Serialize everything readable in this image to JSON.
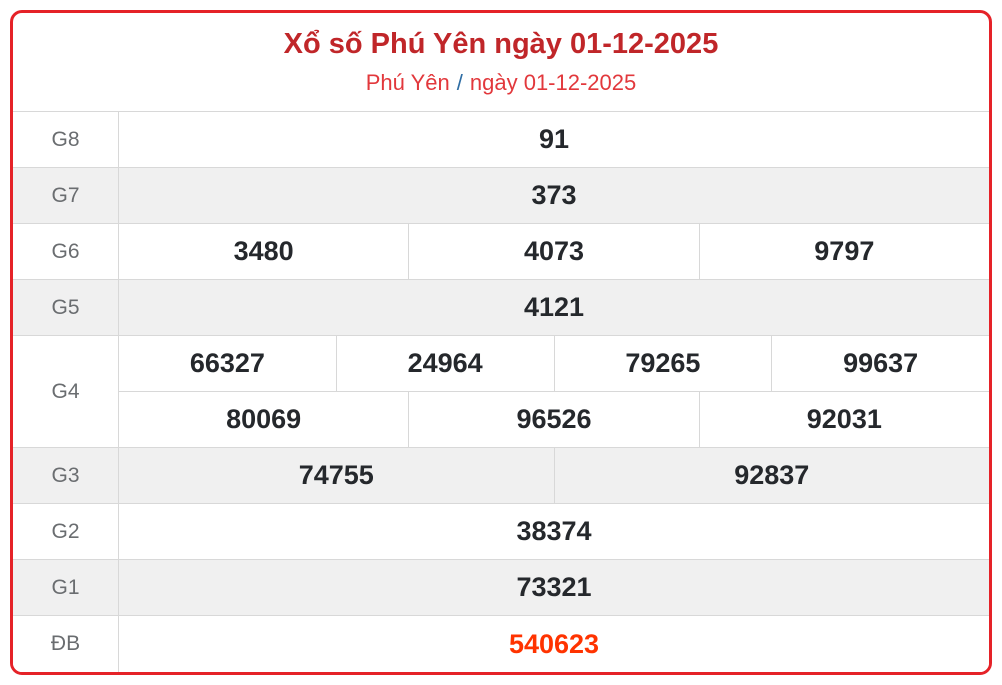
{
  "colors": {
    "card_border_red": "#e52228",
    "title_red": "#c02629",
    "link_red": "#e2383c",
    "separator_blue": "#2e6da4",
    "special_prize_red": "#ff3300",
    "stripe_gray": "#f0f0f0",
    "grid_line_gray": "#d8d8d8",
    "number_dark": "#25282c",
    "prize_label_gray": "#6a6d70"
  },
  "header": {
    "title": "Xổ số Phú Yên ngày 01-12-2025",
    "breadcrumb": {
      "province_link": "Phú Yên",
      "separator": "/",
      "date_link": "ngày 01-12-2025"
    }
  },
  "results": {
    "rows": [
      {
        "label": "G8",
        "groups": [
          [
            "91"
          ]
        ]
      },
      {
        "label": "G7",
        "groups": [
          [
            "373"
          ]
        ]
      },
      {
        "label": "G6",
        "groups": [
          [
            "3480",
            "4073",
            "9797"
          ]
        ]
      },
      {
        "label": "G5",
        "groups": [
          [
            "4121"
          ]
        ]
      },
      {
        "label": "G4",
        "groups": [
          [
            "66327",
            "24964",
            "79265",
            "99637"
          ],
          [
            "80069",
            "96526",
            "92031"
          ]
        ]
      },
      {
        "label": "G3",
        "groups": [
          [
            "74755",
            "92837"
          ]
        ]
      },
      {
        "label": "G2",
        "groups": [
          [
            "38374"
          ]
        ]
      },
      {
        "label": "G1",
        "groups": [
          [
            "73321"
          ]
        ]
      },
      {
        "label": "ĐB",
        "groups": [
          [
            "540623"
          ]
        ],
        "highlight": true
      }
    ]
  }
}
